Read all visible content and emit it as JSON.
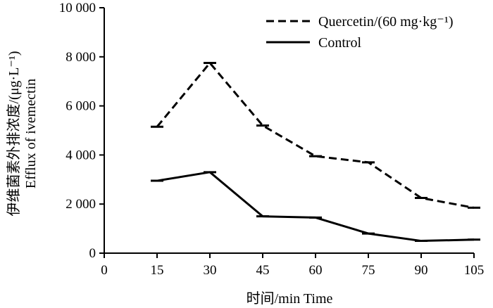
{
  "chart_data": {
    "type": "line",
    "x": [
      15,
      30,
      45,
      60,
      75,
      90,
      105
    ],
    "xticks": [
      "0",
      "15",
      "30",
      "45",
      "60",
      "75",
      "90",
      "105"
    ],
    "xlim": [
      0,
      105
    ],
    "yticks": [
      "0",
      "2 000",
      "4 000",
      "6 000",
      "8 000",
      "10 000"
    ],
    "ylim": [
      0,
      10000
    ],
    "xlabel": "时间/min  Time",
    "ylabel_cn": "伊维菌素外排浓度/(μg·L⁻¹)",
    "ylabel_en": "Efflux of ivemectin",
    "legend_position": "top-right",
    "grid": false,
    "series": [
      {
        "name": "Quercetin/(60 mg·kg⁻¹)",
        "style": "dashed",
        "color": "#000000",
        "values": [
          5150,
          7750,
          5200,
          3950,
          3700,
          2250,
          1850
        ]
      },
      {
        "name": "Control",
        "style": "solid",
        "color": "#000000",
        "values": [
          2950,
          3300,
          1500,
          1450,
          800,
          500,
          550
        ]
      }
    ]
  }
}
